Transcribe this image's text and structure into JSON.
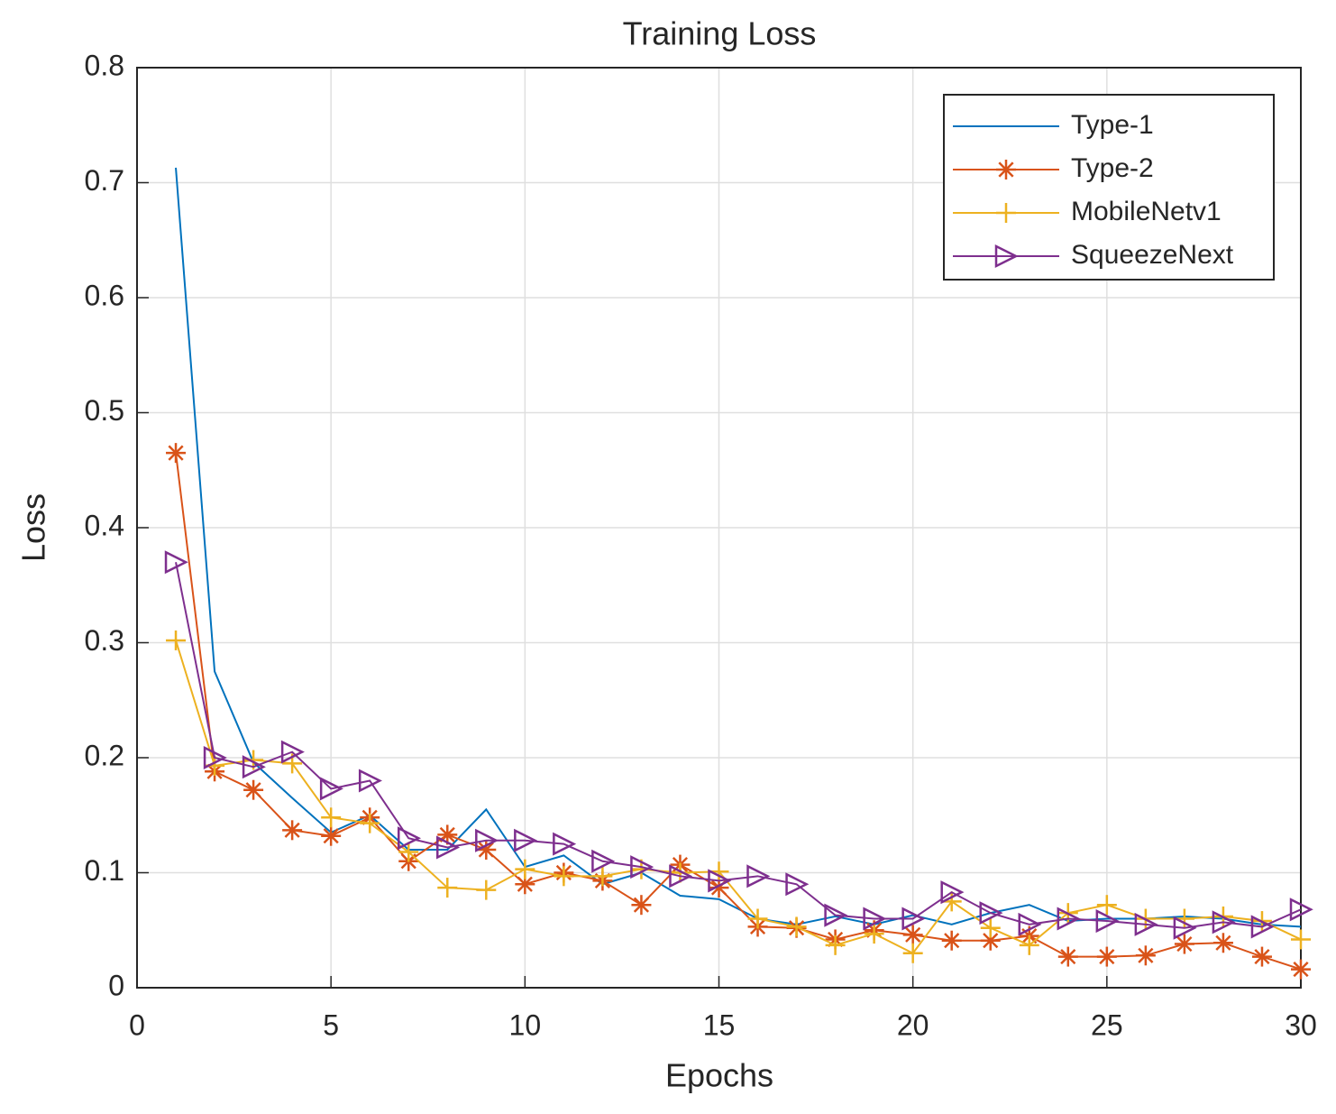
{
  "chart_data": {
    "type": "line",
    "title": "Training Loss",
    "x_label": "Epochs",
    "y_label": "Loss",
    "x": [
      1,
      2,
      3,
      4,
      5,
      6,
      7,
      8,
      9,
      10,
      11,
      12,
      13,
      14,
      15,
      16,
      17,
      18,
      19,
      20,
      21,
      22,
      23,
      24,
      25,
      26,
      27,
      28,
      29,
      30
    ],
    "series": [
      {
        "name": "Type-1",
        "color": "#0072BD",
        "marker": "none",
        "values": [
          0.713,
          0.275,
          0.196,
          0.165,
          0.135,
          0.15,
          0.12,
          0.12,
          0.155,
          0.105,
          0.115,
          0.09,
          0.1,
          0.08,
          0.077,
          0.06,
          0.055,
          0.062,
          0.055,
          0.063,
          0.055,
          0.065,
          0.072,
          0.058,
          0.06,
          0.06,
          0.062,
          0.06,
          0.055,
          0.053
        ]
      },
      {
        "name": "Type-2",
        "color": "#D95319",
        "marker": "asterisk",
        "values": [
          0.465,
          0.188,
          0.172,
          0.137,
          0.132,
          0.148,
          0.11,
          0.133,
          0.12,
          0.09,
          0.1,
          0.093,
          0.072,
          0.107,
          0.087,
          0.053,
          0.052,
          0.042,
          0.05,
          0.046,
          0.041,
          0.041,
          0.045,
          0.027,
          0.027,
          0.028,
          0.038,
          0.039,
          0.027,
          0.016
        ]
      },
      {
        "name": "MobileNetv1",
        "color": "#EDB120",
        "marker": "plus",
        "values": [
          0.302,
          0.193,
          0.198,
          0.195,
          0.148,
          0.143,
          0.118,
          0.087,
          0.085,
          0.103,
          0.097,
          0.097,
          0.103,
          0.1,
          0.101,
          0.06,
          0.053,
          0.037,
          0.047,
          0.03,
          0.075,
          0.052,
          0.037,
          0.065,
          0.072,
          0.06,
          0.06,
          0.062,
          0.058,
          0.042
        ]
      },
      {
        "name": "SqueezeNext",
        "color": "#7E2F8E",
        "marker": "triangle-right",
        "values": [
          0.37,
          0.2,
          0.192,
          0.205,
          0.173,
          0.18,
          0.13,
          0.122,
          0.128,
          0.128,
          0.125,
          0.11,
          0.105,
          0.097,
          0.093,
          0.097,
          0.09,
          0.063,
          0.06,
          0.06,
          0.083,
          0.065,
          0.055,
          0.06,
          0.058,
          0.055,
          0.052,
          0.057,
          0.053,
          0.068
        ]
      }
    ],
    "xlim": [
      0,
      30
    ],
    "xticks": [
      0,
      5,
      10,
      15,
      20,
      25,
      30
    ],
    "ylim": [
      0,
      0.8
    ],
    "yticks": [
      0,
      0.1,
      0.2,
      0.3,
      0.4,
      0.5,
      0.6,
      0.7,
      0.8
    ],
    "grid": true,
    "legend": "northeast"
  }
}
